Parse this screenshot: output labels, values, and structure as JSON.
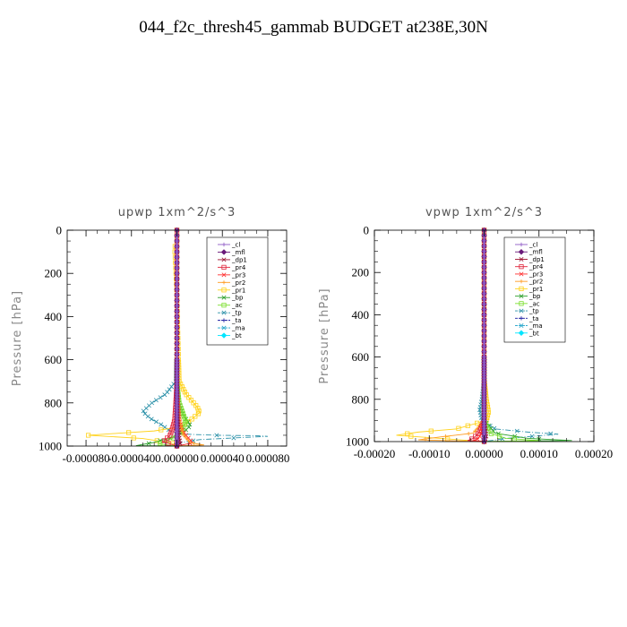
{
  "page_title": "044_f2c_thresh45_gammab  BUDGET at238E,30N",
  "colors": {
    "_cl": "#8f5bc6",
    "_mfl": "#6a1a7a",
    "_dp1": "#9b1030",
    "_pr4": "#e0263c",
    "_pr3": "#ff3030",
    "_pr2": "#ff9a1e",
    "_pr1": "#ffd21a",
    "_bp": "#2ca02c",
    "_ac": "#7ddf30",
    "_tp": "#2a90a8",
    "_ta": "#1a1aa0",
    "_ma": "#1aa0c8",
    "_bt": "#00e5ff"
  },
  "chart_data": [
    {
      "type": "line",
      "title": "upwp   1xm^2/s^3",
      "ylabel": "Pressure  [hPa]",
      "xlim": [
        -9.66e-05,
        9.66e-05
      ],
      "ylim": [
        1000,
        0
      ],
      "x_ticks": [
        -8e-05,
        -4e-05,
        0,
        4e-05,
        8e-05
      ],
      "x_tick_labels": [
        "-0.000080",
        "-0.000040",
        "0.000000",
        "0.000040",
        "0.000080"
      ],
      "y_ticks": [
        0,
        200,
        400,
        600,
        800,
        1000
      ],
      "y_tick_labels": [
        "0",
        "200",
        "400",
        "600",
        "800",
        "1000"
      ],
      "legend": [
        "_cl",
        "_mfl",
        "_dp1",
        "_pr4",
        "_pr3",
        "_pr2",
        "_pr1",
        "_bp",
        "_ac",
        "_tp",
        "_ta",
        "_ma",
        "_bt"
      ],
      "legend_position": "top-right",
      "series": [
        {
          "name": "_tp",
          "points": [
            [
              0,
              0
            ],
            [
              0,
              500
            ],
            [
              -1e-06,
              700
            ],
            [
              -1e-05,
              760
            ],
            [
              -2.2e-05,
              800
            ],
            [
              -3e-05,
              840
            ],
            [
              -2.4e-05,
              870
            ],
            [
              -1.4e-05,
              900
            ],
            [
              -6e-06,
              930
            ],
            [
              8e-06,
              945
            ],
            [
              3.5e-05,
              950
            ],
            [
              7e-05,
              952
            ],
            [
              8e-05,
              955
            ],
            [
              2e-05,
              970
            ],
            [
              3e-06,
              985
            ],
            [
              0,
              1000
            ]
          ]
        },
        {
          "name": "_pr1",
          "points": [
            [
              0,
              0
            ],
            [
              0,
              50
            ],
            [
              -2e-06,
              80
            ],
            [
              0,
              300
            ],
            [
              2e-06,
              700
            ],
            [
              8e-06,
              760
            ],
            [
              1.8e-05,
              820
            ],
            [
              2e-05,
              845
            ],
            [
              1.2e-05,
              880
            ],
            [
              4e-06,
              910
            ],
            [
              -2e-05,
              930
            ],
            [
              -5e-05,
              940
            ],
            [
              -7.8e-05,
              950
            ],
            [
              -3e-05,
              965
            ],
            [
              -5e-06,
              985
            ],
            [
              0,
              1000
            ]
          ]
        },
        {
          "name": "_bp",
          "points": [
            [
              0,
              0
            ],
            [
              0,
              700
            ],
            [
              2e-06,
              800
            ],
            [
              6e-06,
              860
            ],
            [
              1.2e-05,
              905
            ],
            [
              6e-06,
              935
            ],
            [
              -4e-06,
              960
            ],
            [
              -2.2e-05,
              985
            ],
            [
              -3.6e-05,
              998
            ],
            [
              0,
              1000
            ]
          ]
        },
        {
          "name": "_ac",
          "points": [
            [
              0,
              0
            ],
            [
              0,
              700
            ],
            [
              2e-06,
              800
            ],
            [
              8e-06,
              890
            ],
            [
              4e-06,
              930
            ],
            [
              -2e-06,
              960
            ],
            [
              -1.6e-05,
              990
            ],
            [
              0,
              1000
            ]
          ]
        },
        {
          "name": "_pr4",
          "points": [
            [
              0,
              0
            ],
            [
              0,
              700
            ],
            [
              -1e-06,
              800
            ],
            [
              -2e-06,
              880
            ],
            [
              -4e-06,
              920
            ],
            [
              -6e-06,
              950
            ],
            [
              -1.2e-05,
              980
            ],
            [
              0,
              1000
            ]
          ]
        },
        {
          "name": "_pr3",
          "points": [
            [
              0,
              0
            ],
            [
              0,
              700
            ],
            [
              1e-06,
              800
            ],
            [
              2e-06,
              880
            ],
            [
              4e-06,
              920
            ],
            [
              8e-06,
              950
            ],
            [
              1.4e-05,
              985
            ],
            [
              0,
              1000
            ]
          ]
        },
        {
          "name": "_pr2",
          "points": [
            [
              0,
              0
            ],
            [
              0,
              700
            ],
            [
              1e-06,
              800
            ],
            [
              3e-06,
              900
            ],
            [
              6e-06,
              950
            ],
            [
              1.2e-05,
              985
            ],
            [
              2.4e-05,
              995
            ],
            [
              0,
              1000
            ]
          ]
        },
        {
          "name": "_dp1",
          "points": [
            [
              0,
              0
            ],
            [
              0,
              800
            ],
            [
              1e-06,
              900
            ],
            [
              2e-06,
              960
            ],
            [
              3e-06,
              990
            ],
            [
              0,
              1000
            ]
          ]
        },
        {
          "name": "_mfl",
          "points": [
            [
              0,
              0
            ],
            [
              0,
              500
            ],
            [
              0,
              1000
            ]
          ]
        },
        {
          "name": "_cl",
          "points": [
            [
              0,
              0
            ],
            [
              0,
              1000
            ]
          ]
        }
      ]
    },
    {
      "type": "line",
      "title": "vpwp   1xm^2/s^3",
      "ylabel": "Pressure  [hPa]",
      "xlim": [
        -0.0002,
        0.0002
      ],
      "ylim": [
        1000,
        0
      ],
      "x_ticks": [
        -0.0002,
        -0.0001,
        0,
        0.0001,
        0.0002
      ],
      "x_tick_labels": [
        "-0.00020",
        "-0.00010",
        "0.00000",
        "0.00010",
        "0.00020"
      ],
      "y_ticks": [
        0,
        200,
        400,
        600,
        800,
        1000
      ],
      "y_tick_labels": [
        "0",
        "200",
        "400",
        "600",
        "800",
        "1000"
      ],
      "legend": [
        "_cl",
        "_mfl",
        "_dp1",
        "_pr4",
        "_pr3",
        "_pr2",
        "_pr1",
        "_bp",
        "_ac",
        "_tp",
        "_ta",
        "_ma",
        "_bt"
      ],
      "legend_position": "top-right",
      "series": [
        {
          "name": "_tp",
          "points": [
            [
              0,
              0
            ],
            [
              0,
              700
            ],
            [
              -4e-06,
              800
            ],
            [
              -8e-06,
              850
            ],
            [
              -4e-06,
              900
            ],
            [
              2e-05,
              940
            ],
            [
              8e-05,
              955
            ],
            [
              0.000135,
              965
            ],
            [
              4e-05,
              985
            ],
            [
              0,
              1000
            ]
          ]
        },
        {
          "name": "_pr1",
          "points": [
            [
              0,
              0
            ],
            [
              0,
              700
            ],
            [
              4e-06,
              800
            ],
            [
              8e-06,
              860
            ],
            [
              4e-06,
              900
            ],
            [
              -5e-05,
              940
            ],
            [
              -0.00012,
              955
            ],
            [
              -0.00016,
              970
            ],
            [
              -8e-05,
              985
            ],
            [
              0,
              1000
            ]
          ]
        },
        {
          "name": "_pr2",
          "points": [
            [
              0,
              0
            ],
            [
              0,
              900
            ],
            [
              -2e-05,
              960
            ],
            [
              -8e-05,
              978
            ],
            [
              -0.00012,
              992
            ],
            [
              0,
              1000
            ]
          ]
        },
        {
          "name": "_bp",
          "points": [
            [
              0,
              0
            ],
            [
              0,
              900
            ],
            [
              2e-05,
              960
            ],
            [
              8e-05,
              985
            ],
            [
              0.00016,
              995
            ],
            [
              0,
              1000
            ]
          ]
        },
        {
          "name": "_ac",
          "points": [
            [
              0,
              0
            ],
            [
              0,
              900
            ],
            [
              1e-05,
              960
            ],
            [
              4e-05,
              985
            ],
            [
              0.0001,
              995
            ],
            [
              0,
              1000
            ]
          ]
        },
        {
          "name": "_pr4",
          "points": [
            [
              0,
              0
            ],
            [
              0,
              900
            ],
            [
              -1e-05,
              960
            ],
            [
              -2e-05,
              985
            ],
            [
              -3e-05,
              995
            ],
            [
              0,
              1000
            ]
          ]
        },
        {
          "name": "_pr3",
          "points": [
            [
              0,
              0
            ],
            [
              0,
              900
            ],
            [
              -5e-06,
              960
            ],
            [
              -1e-05,
              985
            ],
            [
              -2e-05,
              995
            ],
            [
              0,
              1000
            ]
          ]
        },
        {
          "name": "_dp1",
          "points": [
            [
              0,
              0
            ],
            [
              0,
              900
            ],
            [
              4e-06,
              980
            ],
            [
              0,
              1000
            ]
          ]
        },
        {
          "name": "_mfl",
          "points": [
            [
              0,
              0
            ],
            [
              0,
              500
            ],
            [
              0,
              1000
            ]
          ]
        },
        {
          "name": "_cl",
          "points": [
            [
              0,
              0
            ],
            [
              0,
              1000
            ]
          ]
        }
      ]
    }
  ]
}
